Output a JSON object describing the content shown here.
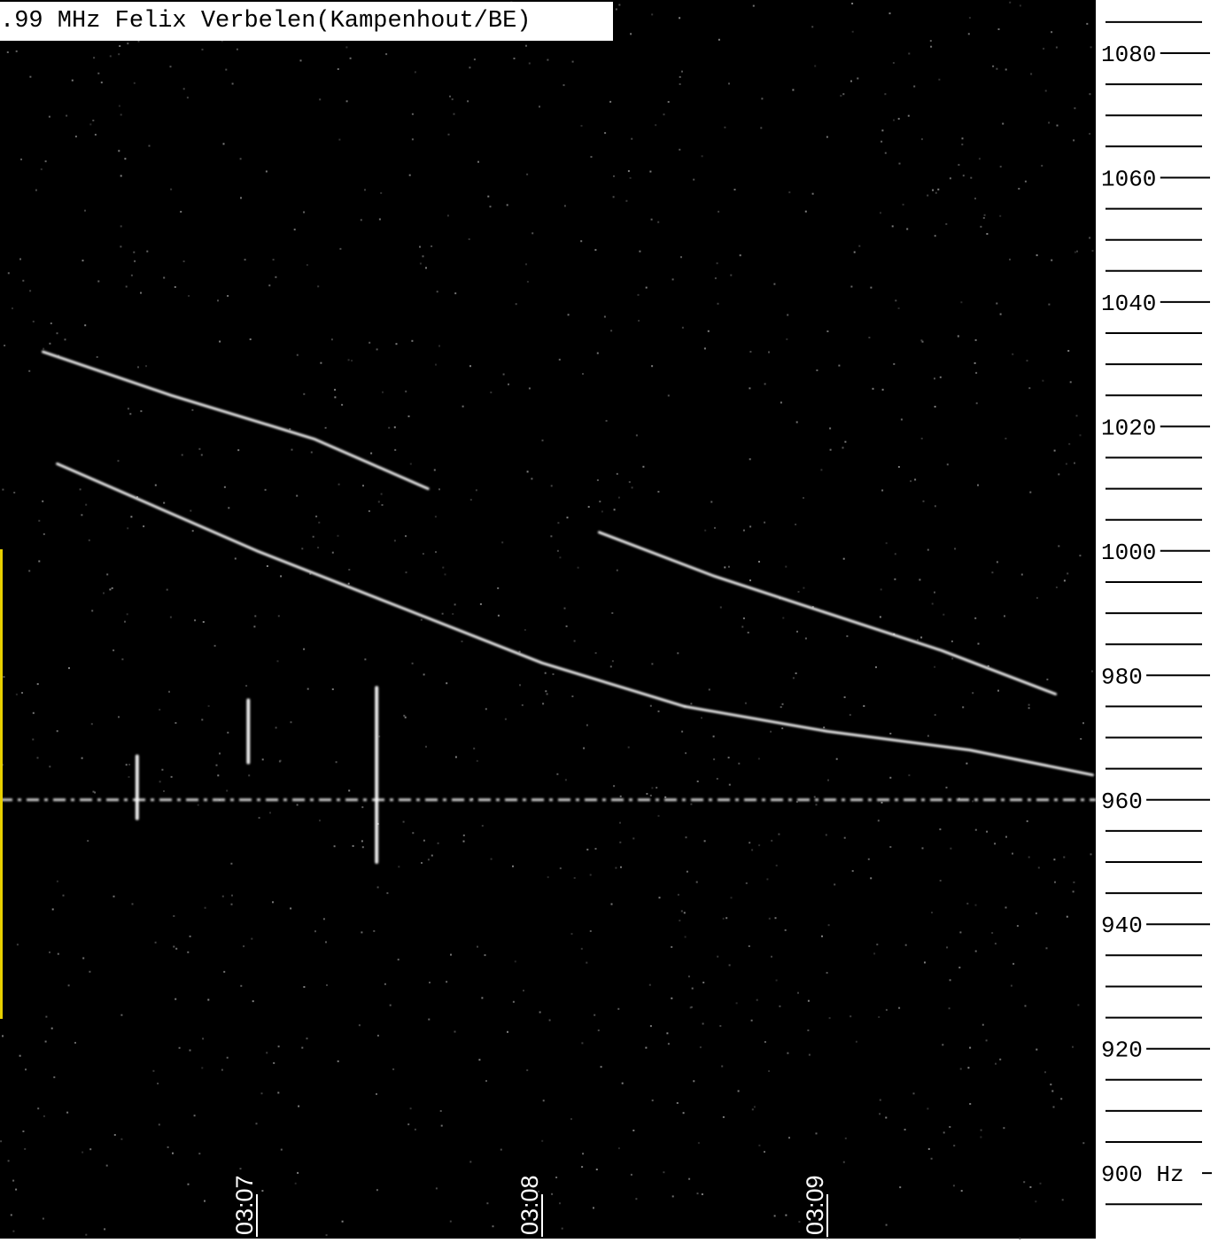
{
  "title": ".99 MHz Felix Verbelen(Kampenhout/BE)",
  "colors": {
    "background": "#000000",
    "echo": "#ffffff",
    "scale_background": "#ffffff",
    "scale_ink": "#000000",
    "marker": "#e8d000"
  },
  "chart_data": {
    "type": "heatmap",
    "title": ".99 MHz Felix Verbelen(Kampenhout/BE)",
    "ylabel_unit": "Hz",
    "y_tick_labels": [
      "1080",
      "1060",
      "1040",
      "1020",
      "1000",
      "980",
      "960",
      "940",
      "920",
      "900 Hz"
    ],
    "y_tick_values": [
      1080,
      1060,
      1040,
      1020,
      1000,
      980,
      960,
      940,
      920,
      900
    ],
    "y_minor_step": 5,
    "ylim": [
      892,
      1085
    ],
    "x_tick_labels": [
      "03:07",
      "03:08",
      "03:09"
    ],
    "x_tick_minutes": [
      7,
      8,
      9
    ],
    "xlim_minutes": [
      6.06,
      9.93
    ],
    "carrier_hz": 960,
    "series": [
      {
        "x": [
          6.3,
          7.0,
          7.5,
          8.0,
          8.5
        ],
        "y": [
          1014,
          1000,
          991,
          982,
          975
        ]
      },
      {
        "x": [
          8.5,
          9.0,
          9.5,
          9.93
        ],
        "y": [
          975,
          971,
          968,
          964
        ]
      },
      {
        "x": [
          6.25,
          6.7,
          7.2,
          7.6
        ],
        "y": [
          1032,
          1025,
          1018,
          1010
        ]
      },
      {
        "x": [
          8.2,
          8.6,
          9.0,
          9.4,
          9.8
        ],
        "y": [
          1003,
          996,
          990,
          984,
          977
        ]
      },
      {
        "x": [
          6.58,
          6.58
        ],
        "y": [
          957,
          967
        ]
      },
      {
        "x": [
          6.97,
          6.97
        ],
        "y": [
          966,
          976
        ]
      },
      {
        "x": [
          7.42,
          7.42
        ],
        "y": [
          950,
          978
        ]
      }
    ]
  }
}
